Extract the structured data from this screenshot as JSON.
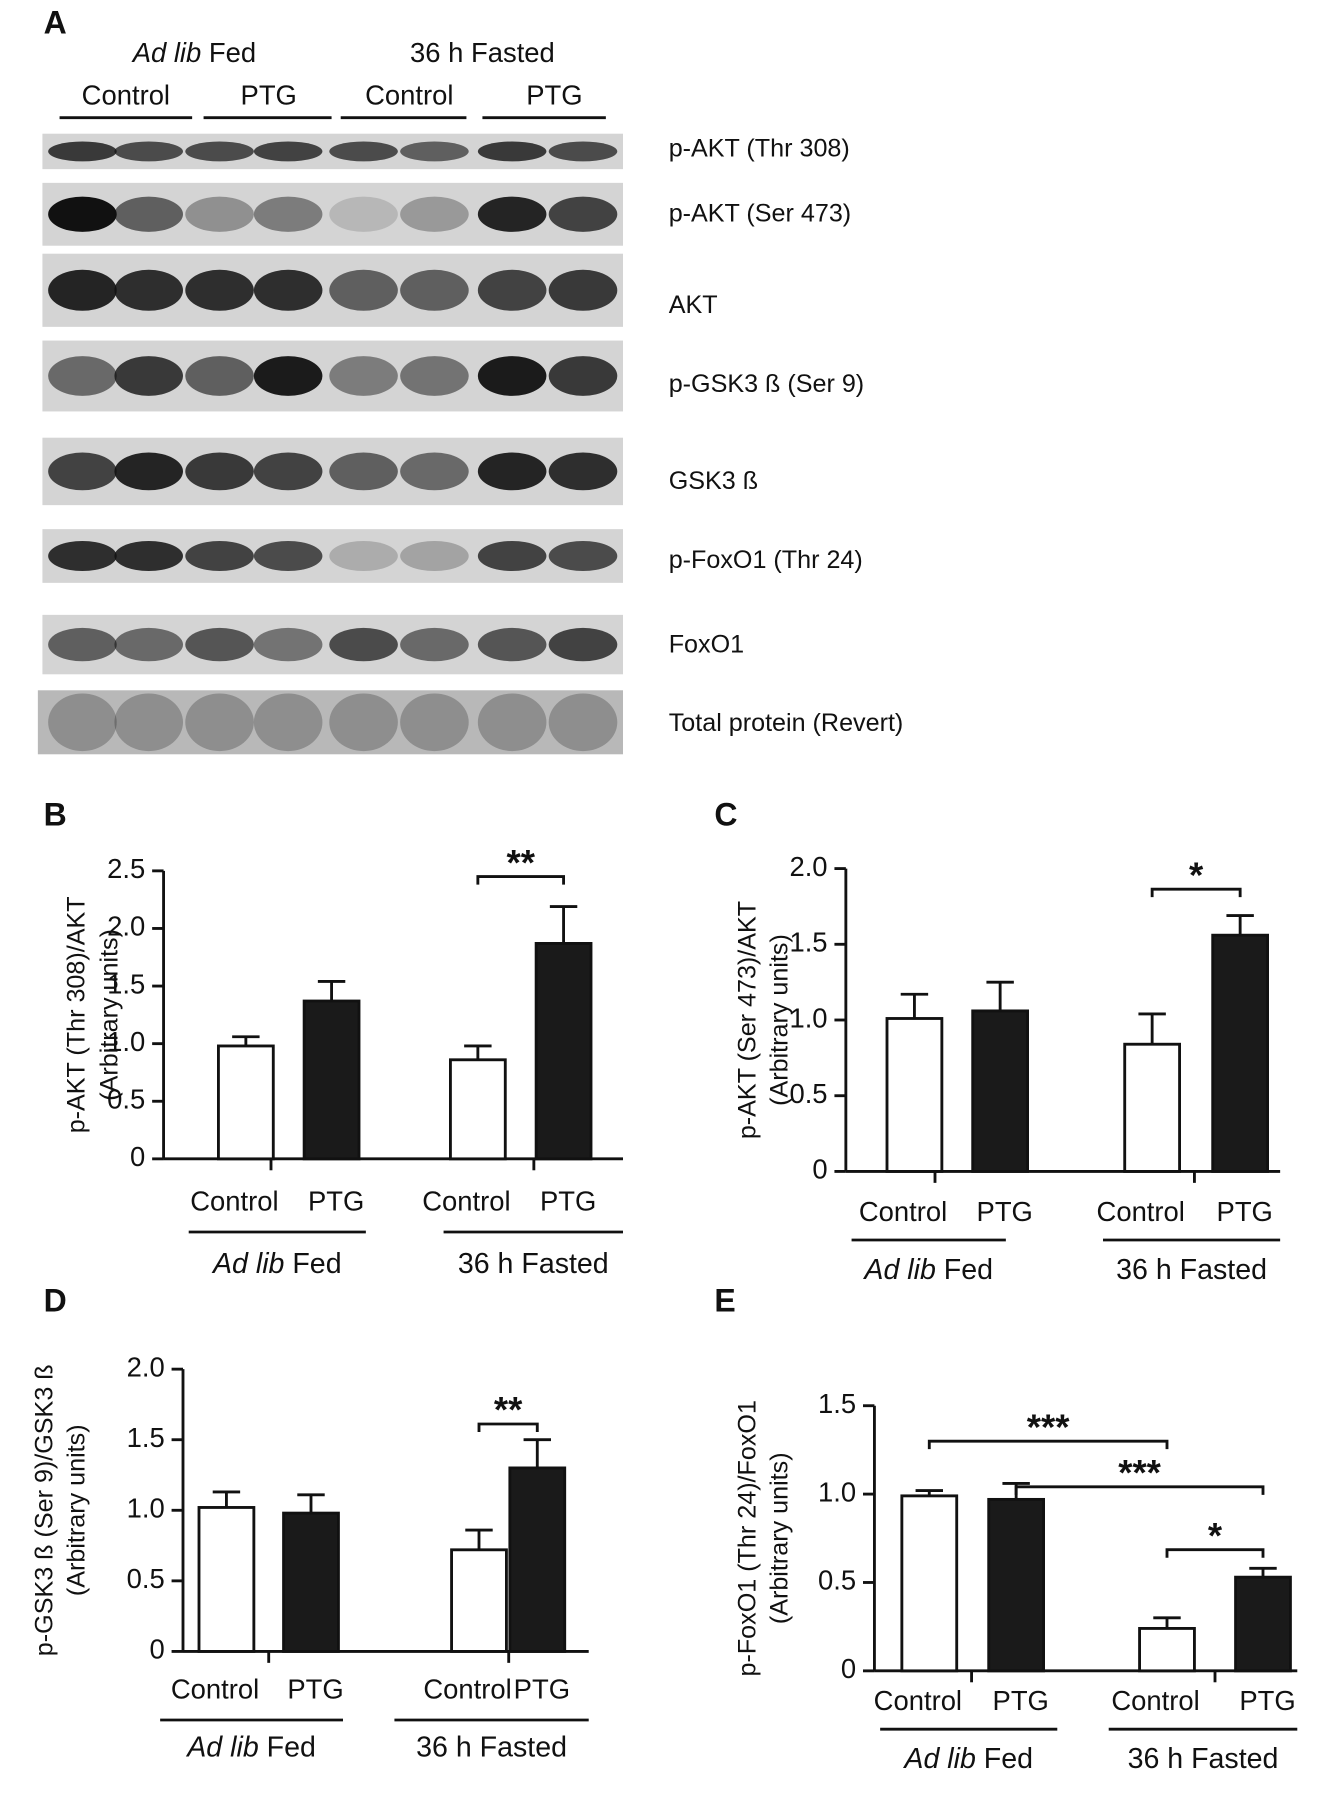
{
  "blot": {
    "panel": "A",
    "groups": [
      {
        "italic": "Ad lib",
        "plain": "Fed"
      },
      {
        "plain": "36 h Fasted"
      }
    ],
    "lanes": [
      "Control",
      "PTG",
      "Control",
      "PTG"
    ],
    "rows": [
      "p-AKT (Thr 308)",
      "p-AKT (Ser 473)",
      "AKT",
      "p-GSK3 ß (Ser 9)",
      "GSK3 ß",
      "p-FoxO1 (Thr 24)",
      "FoxO1",
      "Total protein (Revert)"
    ]
  },
  "chart_data": [
    {
      "type": "bar",
      "panel": "B",
      "ylabel": [
        "p-AKT (Thr 308)/AKT",
        "(Arbitrary units)"
      ],
      "categories": [
        "Control",
        "PTG",
        "Control",
        "PTG"
      ],
      "groups": [
        {
          "italic": "Ad lib",
          "plain": "Fed"
        },
        {
          "plain": "36 h Fasted"
        }
      ],
      "series": [
        {
          "values": [
            0.98,
            1.37,
            0.86,
            1.87
          ],
          "errors": [
            0.08,
            0.17,
            0.12,
            0.32
          ],
          "colors": [
            "#ffffff",
            "#1a1a1a",
            "#ffffff",
            "#1a1a1a"
          ]
        }
      ],
      "ylim": [
        0,
        2.5
      ],
      "yticks": [
        0,
        0.5,
        {
          "value": 1,
          "label": "1.0"
        },
        1.5,
        {
          "value": 2,
          "label": "2.0"
        },
        2.5
      ],
      "significance": [
        {
          "from": 2,
          "to": 3,
          "label": "**"
        }
      ]
    },
    {
      "type": "bar",
      "panel": "C",
      "ylabel": [
        "p-AKT (Ser 473)/AKT",
        "(Arbitrary units)"
      ],
      "categories": [
        "Control",
        "PTG",
        "Control",
        "PTG"
      ],
      "groups": [
        {
          "italic": "Ad lib",
          "plain": "Fed"
        },
        {
          "plain": "36 h Fasted"
        }
      ],
      "series": [
        {
          "values": [
            1.01,
            1.06,
            0.84,
            1.56
          ],
          "errors": [
            0.16,
            0.19,
            0.2,
            0.13
          ],
          "colors": [
            "#ffffff",
            "#1a1a1a",
            "#ffffff",
            "#1a1a1a"
          ]
        }
      ],
      "ylim": [
        0,
        2
      ],
      "yticks": [
        0,
        0.5,
        {
          "value": 1,
          "label": "1.0"
        },
        1.5,
        {
          "value": 2,
          "label": "2.0"
        }
      ],
      "significance": [
        {
          "from": 2,
          "to": 3,
          "label": "*"
        }
      ]
    },
    {
      "type": "bar",
      "panel": "D",
      "ylabel": [
        "p-GSK3 ß (Ser 9)/GSK3 ß",
        "(Arbitrary units)"
      ],
      "categories": [
        "Control",
        "PTG",
        "Control",
        "PTG"
      ],
      "groups": [
        {
          "italic": "Ad lib",
          "plain": "Fed"
        },
        {
          "plain": "36 h Fasted"
        }
      ],
      "series": [
        {
          "values": [
            1.02,
            0.98,
            0.72,
            1.3
          ],
          "errors": [
            0.11,
            0.13,
            0.14,
            0.2
          ],
          "colors": [
            "#ffffff",
            "#1a1a1a",
            "#ffffff",
            "#1a1a1a"
          ]
        }
      ],
      "ylim": [
        0,
        2
      ],
      "yticks": [
        0,
        0.5,
        {
          "value": 1,
          "label": "1.0"
        },
        1.5,
        {
          "value": 2,
          "label": "2.0"
        }
      ],
      "significance": [
        {
          "from": 2,
          "to": 3,
          "label": "**"
        }
      ]
    },
    {
      "type": "bar",
      "panel": "E",
      "ylabel": [
        "p-FoxO1 (Thr 24)/FoxO1",
        "(Arbitrary units)"
      ],
      "categories": [
        "Control",
        "PTG",
        "Control",
        "PTG"
      ],
      "groups": [
        {
          "italic": "Ad lib",
          "plain": "Fed"
        },
        {
          "plain": "36 h Fasted"
        }
      ],
      "series": [
        {
          "values": [
            0.99,
            0.97,
            0.24,
            0.53
          ],
          "errors": [
            0.03,
            0.09,
            0.06,
            0.05
          ],
          "colors": [
            "#ffffff",
            "#1a1a1a",
            "#ffffff",
            "#1a1a1a"
          ]
        }
      ],
      "ylim": [
        0,
        1.5
      ],
      "yticks": [
        0,
        0.5,
        {
          "value": 1,
          "label": "1.0"
        },
        1.5
      ],
      "significance": [
        {
          "from": 0,
          "to": 2,
          "label": "***"
        },
        {
          "from": 1,
          "to": 3,
          "label": "***"
        },
        {
          "from": 2,
          "to": 3,
          "label": "*"
        }
      ]
    }
  ]
}
